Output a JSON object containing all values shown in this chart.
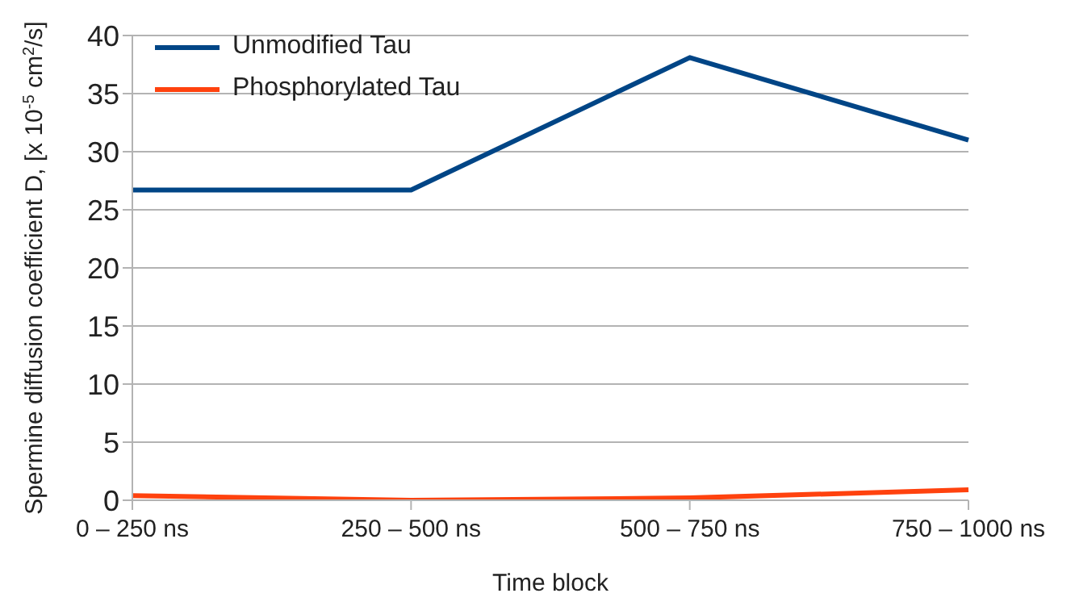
{
  "chart_data": {
    "type": "line",
    "xlabel": "Time block",
    "ylabel": "Spermine diffusion coefficient D, [x 10$^{-5}$ cm$^{2}$/s]",
    "categories": [
      "0 – 250 ns",
      "250 – 500 ns",
      "500 – 750 ns",
      "750 – 1000 ns"
    ],
    "series": [
      {
        "name": "Unmodified Tau",
        "color": "#004586",
        "values": [
          26.7,
          26.7,
          38.1,
          31
        ]
      },
      {
        "name": "Phosphorylated Tau",
        "color": "#ff420e",
        "values": [
          0.4,
          0,
          0.2,
          0.9
        ]
      }
    ],
    "ylim": [
      0,
      40
    ],
    "yticks": [
      0,
      5,
      10,
      15,
      20,
      25,
      30,
      35,
      40
    ],
    "grid": "y",
    "legend": "top left",
    "marker": "none",
    "line_style": "solid"
  }
}
